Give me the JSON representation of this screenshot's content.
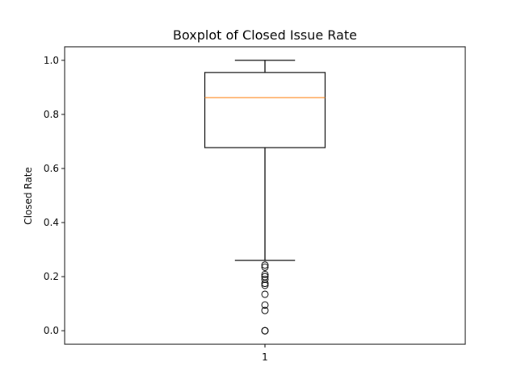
{
  "chart_data": {
    "type": "boxplot",
    "title": "Boxplot of Closed Issue Rate",
    "xlabel": "",
    "ylabel": "Closed Rate",
    "categories": [
      "1"
    ],
    "ylim": [
      -0.05,
      1.05
    ],
    "yticks": [
      0.0,
      0.2,
      0.4,
      0.6,
      0.8,
      1.0
    ],
    "ytick_labels": [
      "0.0",
      "0.2",
      "0.4",
      "0.6",
      "0.8",
      "1.0"
    ],
    "xtick_labels": [
      "1"
    ],
    "grid": false,
    "colors": {
      "box": "#000000",
      "median": "#ff7f0e",
      "outlier": "#000000"
    },
    "boxes": [
      {
        "label": "1",
        "whisker_low": 0.26,
        "q1": 0.677,
        "median": 0.862,
        "q3": 0.955,
        "whisker_high": 1.0,
        "outliers": [
          0.243,
          0.235,
          0.208,
          0.2,
          0.19,
          0.175,
          0.168,
          0.135,
          0.095,
          0.075,
          0.0,
          0.0,
          0.0
        ]
      }
    ]
  }
}
